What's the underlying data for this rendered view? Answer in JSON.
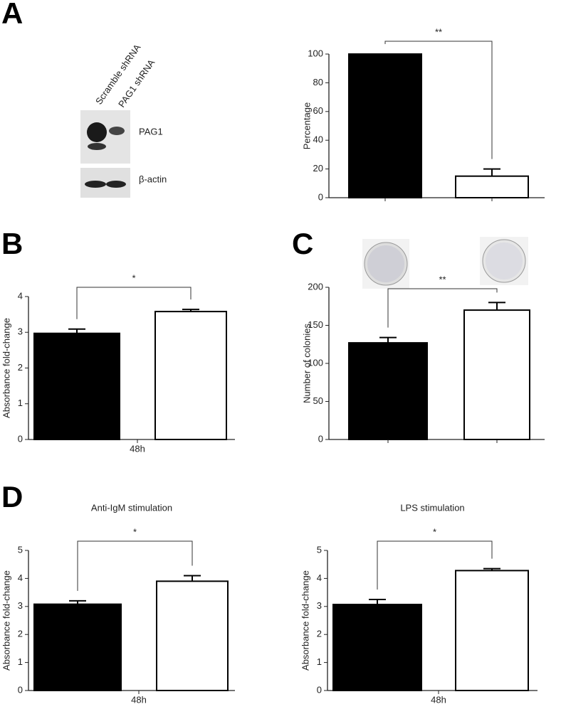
{
  "panel_labels": [
    "A",
    "B",
    "C",
    "D"
  ],
  "blot": {
    "lanes": [
      "Scramble shRNA",
      "PAG1 shRNA"
    ],
    "bands": [
      "PAG1",
      "β-actin"
    ]
  },
  "chart_data": [
    {
      "type": "bar",
      "ylabel": "Percentage",
      "categories": [
        null,
        null
      ],
      "values": [
        100,
        15
      ],
      "errors": [
        0,
        5
      ],
      "colors": [
        "#000000",
        "#ffffff"
      ],
      "ylim": [
        0,
        100
      ],
      "yticks": [
        0,
        20,
        40,
        60,
        80,
        100
      ],
      "significance": "**"
    },
    {
      "type": "bar",
      "ylabel": "Absorbance fold-change",
      "xlabel": "48h",
      "categories": [
        null,
        null
      ],
      "values": [
        2.97,
        3.58
      ],
      "errors": [
        0.12,
        0.06
      ],
      "colors": [
        "#000000",
        "#ffffff"
      ],
      "ylim": [
        0,
        4
      ],
      "yticks": [
        0,
        1,
        2,
        3,
        4
      ],
      "significance": "*"
    },
    {
      "type": "bar",
      "ylabel": "Number of colonies",
      "categories": [
        null,
        null
      ],
      "values": [
        127,
        170
      ],
      "errors": [
        7,
        10
      ],
      "colors": [
        "#000000",
        "#ffffff"
      ],
      "ylim": [
        0,
        200
      ],
      "yticks": [
        0,
        50,
        100,
        150,
        200
      ],
      "significance": "**"
    },
    {
      "type": "bar",
      "title": "Anti-IgM stimulation",
      "ylabel": "Absorbance fold-change",
      "xlabel": "48h",
      "categories": [
        null,
        null
      ],
      "values": [
        3.08,
        3.9
      ],
      "errors": [
        0.12,
        0.2
      ],
      "colors": [
        "#000000",
        "#ffffff"
      ],
      "ylim": [
        0,
        5
      ],
      "yticks": [
        0,
        1,
        2,
        3,
        4,
        5
      ],
      "significance": "*"
    },
    {
      "type": "bar",
      "title": "LPS stimulation",
      "ylabel": "Absorbance fold-change",
      "xlabel": "48h",
      "categories": [
        null,
        null
      ],
      "values": [
        3.07,
        4.28
      ],
      "errors": [
        0.18,
        0.07
      ],
      "colors": [
        "#000000",
        "#ffffff"
      ],
      "ylim": [
        0,
        5
      ],
      "yticks": [
        0,
        1,
        2,
        3,
        4,
        5
      ],
      "significance": "*"
    }
  ]
}
